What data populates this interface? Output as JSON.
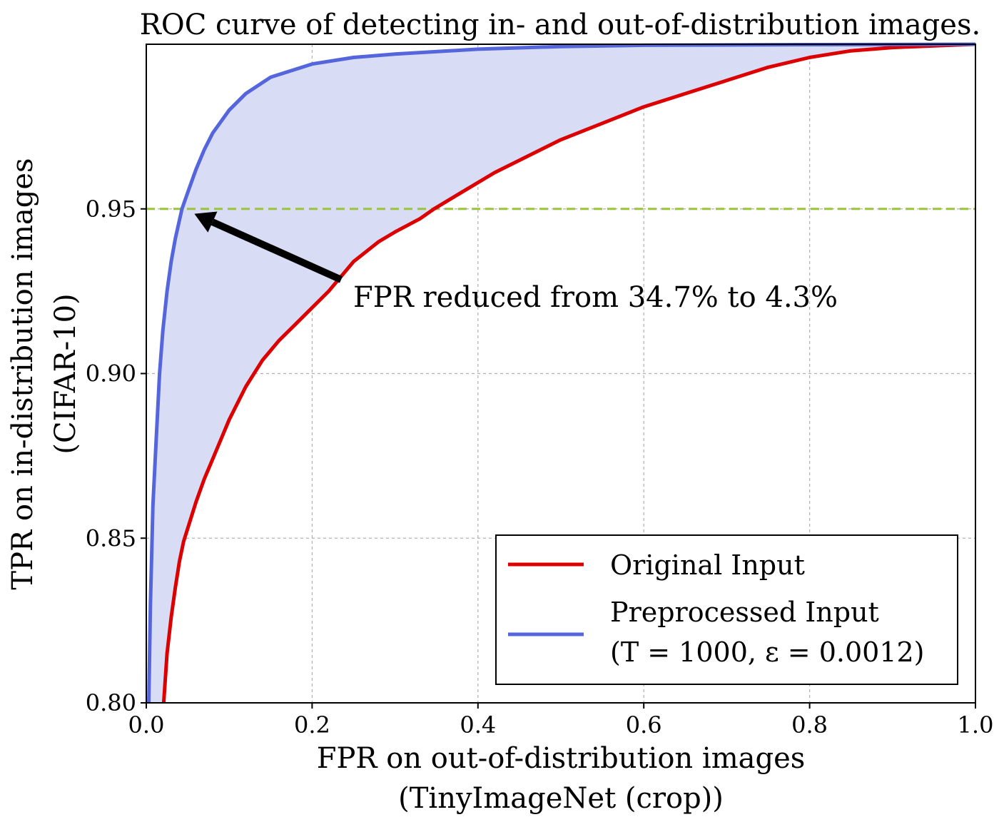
{
  "chart_data": {
    "type": "line",
    "title": "ROC curve of detecting in- and out-of-distribution images.",
    "xlabel": [
      "FPR on out-of-distribution images",
      "(TinyImageNet (crop))"
    ],
    "ylabel": [
      "TPR on in-distribution images",
      "(CIFAR-10)"
    ],
    "xlim": [
      0.0,
      1.0
    ],
    "ylim": [
      0.8,
      1.0
    ],
    "x_ticks": [
      0.0,
      0.2,
      0.4,
      0.6,
      0.8,
      1.0
    ],
    "x_tick_labels": [
      "0.0",
      "0.2",
      "0.4",
      "0.6",
      "0.8",
      "1.0"
    ],
    "y_ticks": [
      0.8,
      0.85,
      0.9,
      0.95
    ],
    "y_tick_labels": [
      "0.80",
      "0.85",
      "0.90",
      "0.95"
    ],
    "grid": true,
    "legend_position": "lower-right",
    "series": [
      {
        "name": "Original Input",
        "color": "#dd0000",
        "x": [
          0.021,
          0.025,
          0.03,
          0.035,
          0.04,
          0.045,
          0.05,
          0.06,
          0.07,
          0.08,
          0.09,
          0.1,
          0.12,
          0.14,
          0.16,
          0.18,
          0.2,
          0.22,
          0.25,
          0.28,
          0.3,
          0.33,
          0.347,
          0.38,
          0.42,
          0.46,
          0.5,
          0.55,
          0.6,
          0.65,
          0.7,
          0.75,
          0.8,
          0.85,
          0.9,
          0.95,
          1.0
        ],
        "y": [
          0.8,
          0.815,
          0.826,
          0.835,
          0.843,
          0.849,
          0.853,
          0.861,
          0.868,
          0.874,
          0.88,
          0.886,
          0.896,
          0.904,
          0.91,
          0.915,
          0.92,
          0.925,
          0.934,
          0.94,
          0.943,
          0.947,
          0.95,
          0.955,
          0.961,
          0.966,
          0.971,
          0.976,
          0.981,
          0.985,
          0.989,
          0.993,
          0.996,
          0.998,
          0.999,
          0.9995,
          1.0
        ]
      },
      {
        "name": "Preprocessed Input",
        "name_line2": "(T = 1000, ε = 0.0012)",
        "color": "#5566dd",
        "x": [
          0.003,
          0.005,
          0.008,
          0.012,
          0.016,
          0.02,
          0.025,
          0.03,
          0.035,
          0.043,
          0.05,
          0.06,
          0.07,
          0.08,
          0.1,
          0.12,
          0.15,
          0.2,
          0.25,
          0.3,
          0.4,
          0.5,
          0.6,
          0.8,
          1.0
        ],
        "y": [
          0.8,
          0.83,
          0.86,
          0.88,
          0.9,
          0.913,
          0.925,
          0.934,
          0.941,
          0.95,
          0.955,
          0.962,
          0.968,
          0.973,
          0.98,
          0.985,
          0.99,
          0.994,
          0.996,
          0.997,
          0.9985,
          0.9993,
          0.9997,
          0.9999,
          1.0
        ]
      }
    ],
    "threshold_line": {
      "y": 0.95,
      "color": "#9ac43a",
      "style": "dashed"
    },
    "fill_between_color": "#d9dcf5",
    "annotation": {
      "text": "FPR reduced from 34.7% to 4.3%",
      "arrow_from": [
        0.235,
        0.9285
      ],
      "arrow_to": [
        0.058,
        0.9485
      ]
    },
    "legend_labels": {
      "original": "Original Input",
      "preprocessed_line1": "Preprocessed Input",
      "preprocessed_line2": "(T = 1000, ε = 0.0012)"
    }
  }
}
